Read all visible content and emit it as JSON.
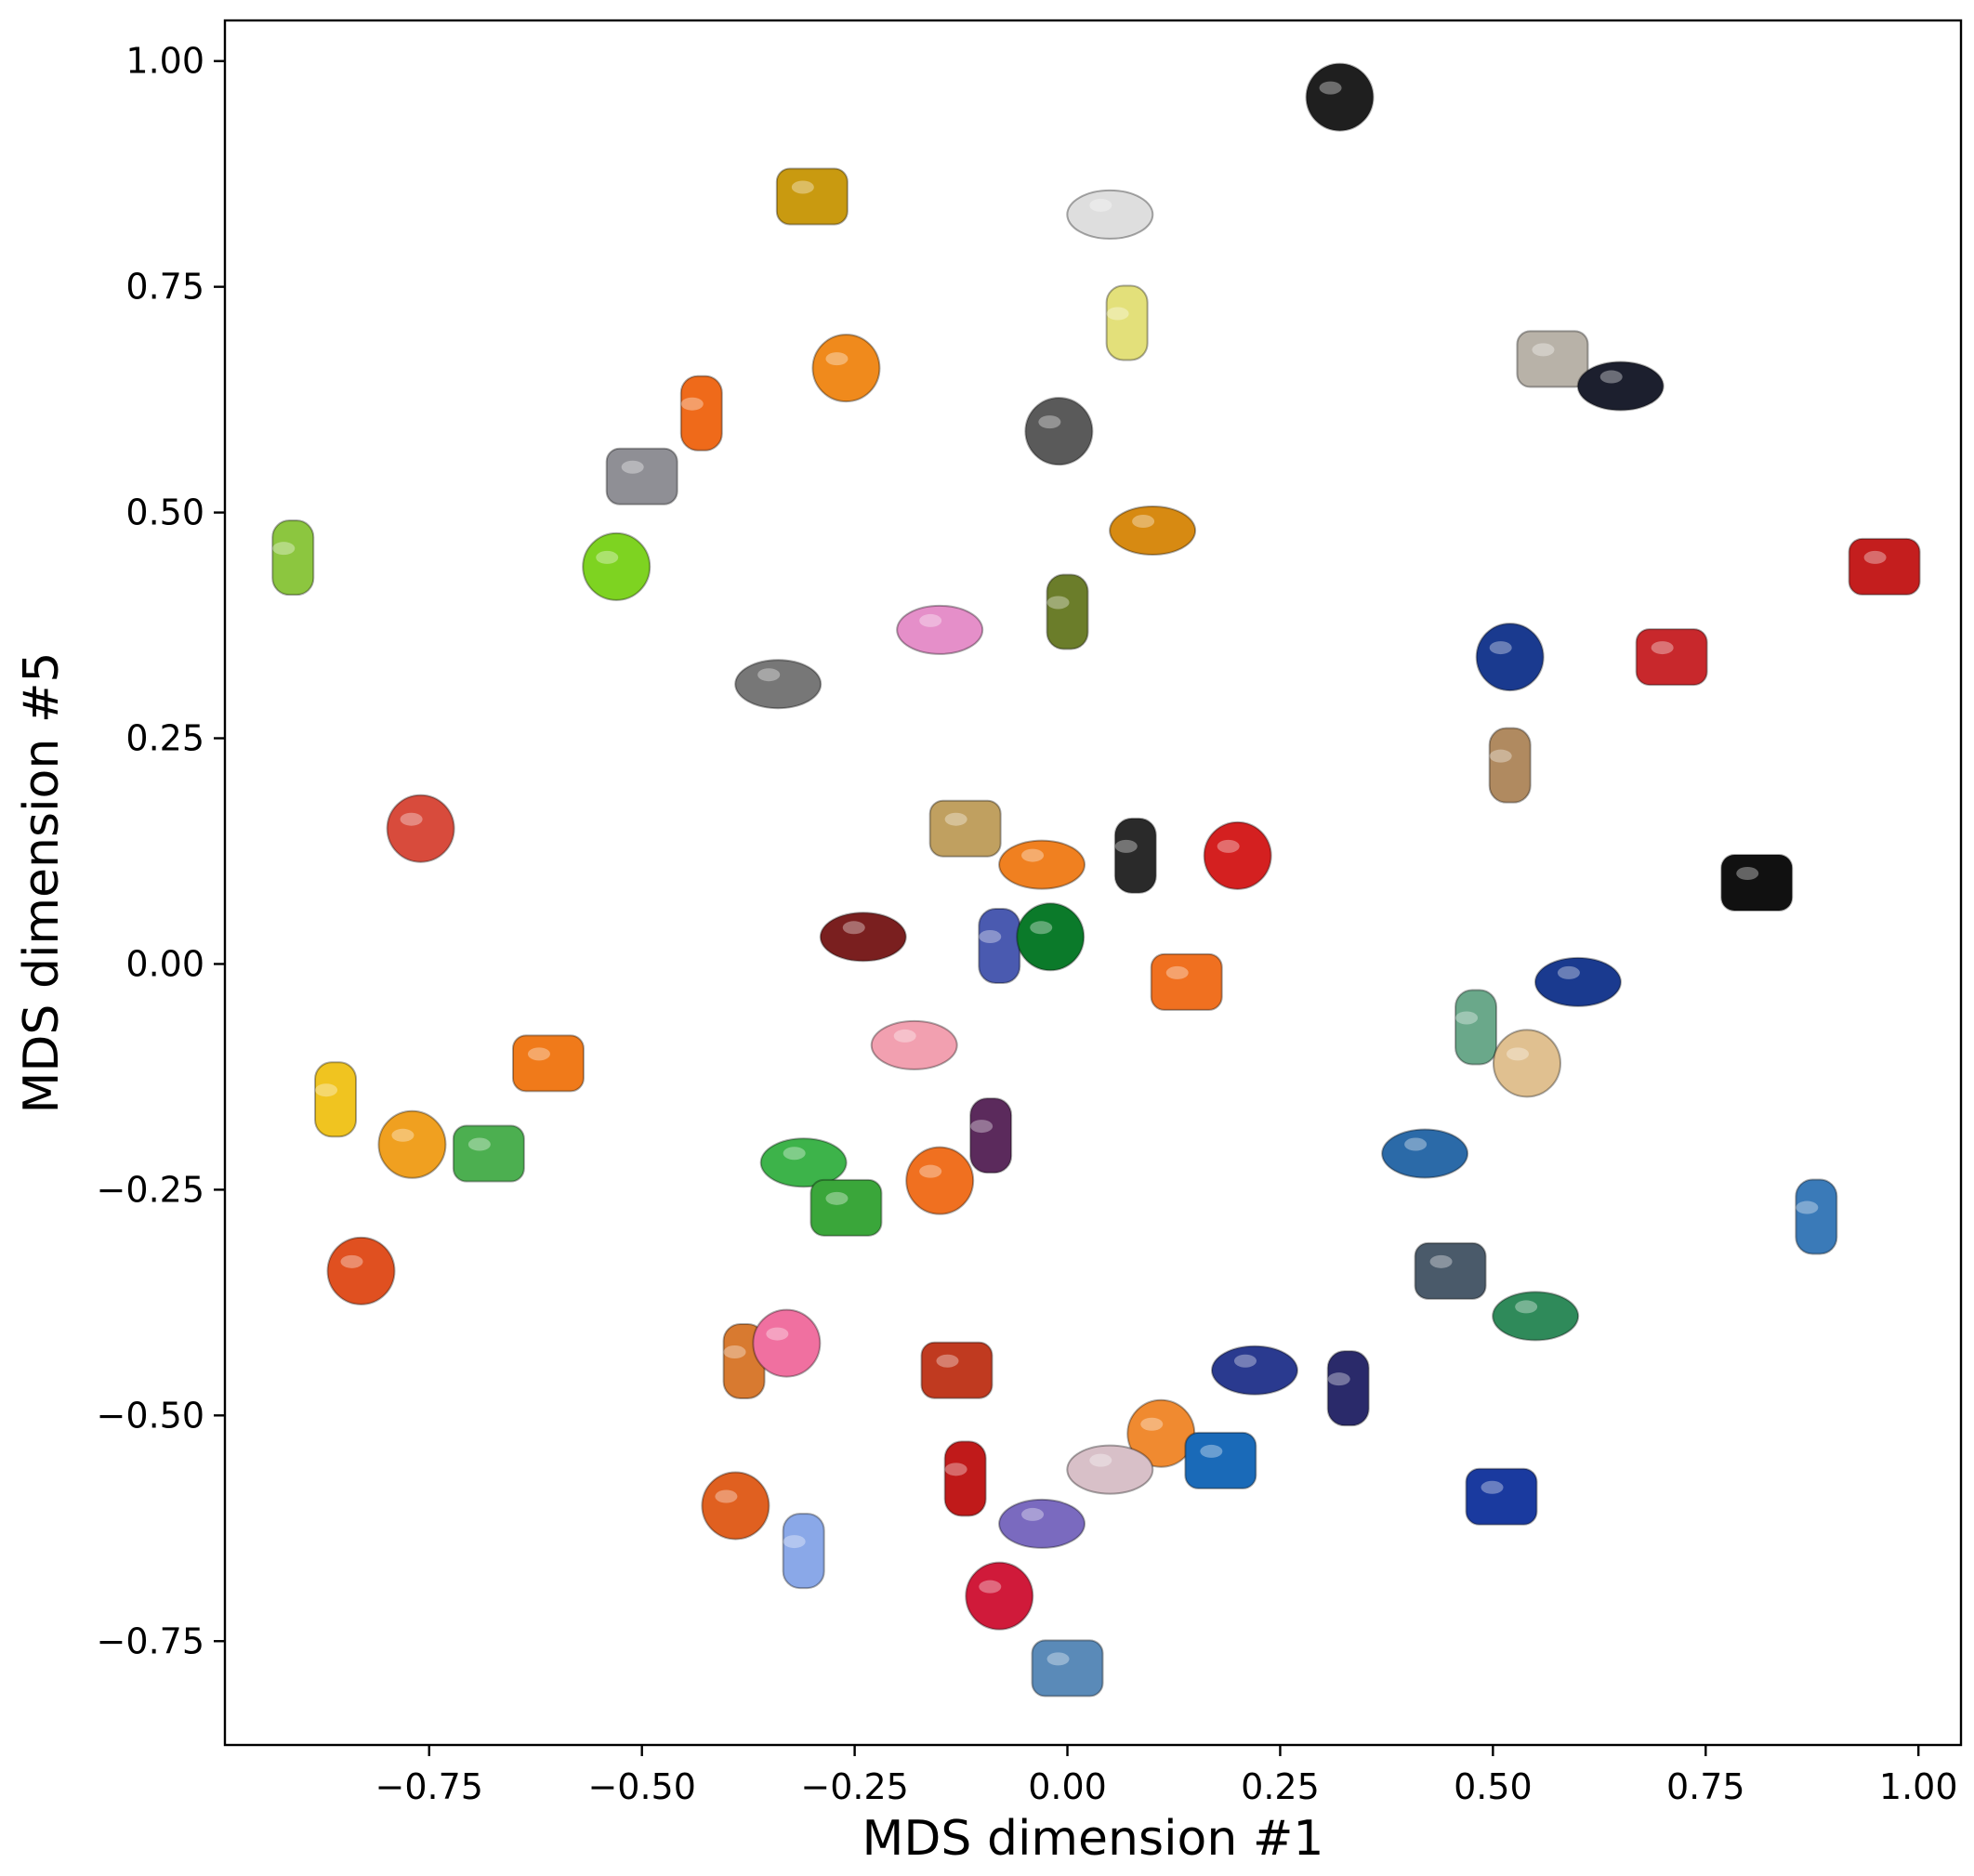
{
  "chart_data": {
    "type": "scatter",
    "title": "",
    "xlabel": "MDS dimension #1",
    "ylabel": "MDS dimension #5",
    "xlim": [
      -0.99,
      1.05
    ],
    "ylim": [
      -0.865,
      1.045
    ],
    "xticks": [
      -0.75,
      -0.5,
      -0.25,
      0.0,
      0.25,
      0.5,
      0.75,
      1.0
    ],
    "yticks": [
      -0.75,
      -0.5,
      -0.25,
      0.0,
      0.25,
      0.5,
      0.75,
      1.0
    ],
    "xtick_labels": [
      "−0.75",
      "−0.50",
      "−0.25",
      "0.00",
      "0.25",
      "0.50",
      "0.75",
      "1.00"
    ],
    "ytick_labels": [
      "−0.75",
      "−0.50",
      "−0.25",
      "0.00",
      "0.25",
      "0.50",
      "0.75",
      "1.00"
    ],
    "grid": false,
    "markers": "object images",
    "points": [
      {
        "x": 0.32,
        "y": 0.96,
        "color": "#1f1f1f",
        "icon": "round-black-object"
      },
      {
        "x": -0.3,
        "y": 0.85,
        "color": "#c99a10",
        "icon": "yellow-pot"
      },
      {
        "x": 0.05,
        "y": 0.83,
        "color": "#dedede",
        "icon": "white-ball"
      },
      {
        "x": 0.07,
        "y": 0.71,
        "color": "#e3e07a",
        "icon": "yellow-cylinder"
      },
      {
        "x": -0.26,
        "y": 0.66,
        "color": "#f08a1c",
        "icon": "orange-egg"
      },
      {
        "x": 0.57,
        "y": 0.67,
        "color": "#b8b2a8",
        "icon": "grey-curved-piece"
      },
      {
        "x": 0.65,
        "y": 0.64,
        "color": "#1c1f2e",
        "icon": "black-knob"
      },
      {
        "x": -0.43,
        "y": 0.61,
        "color": "#ef6a1a",
        "icon": "orange-crate"
      },
      {
        "x": -0.01,
        "y": 0.59,
        "color": "#5a5a5a",
        "icon": "grey-ball"
      },
      {
        "x": -0.5,
        "y": 0.54,
        "color": "#8f8f95",
        "icon": "grey-spinner"
      },
      {
        "x": 0.1,
        "y": 0.48,
        "color": "#d78a12",
        "icon": "orange-blob"
      },
      {
        "x": -0.91,
        "y": 0.45,
        "color": "#8cc63f",
        "icon": "green-clam"
      },
      {
        "x": -0.53,
        "y": 0.44,
        "color": "#7ed321",
        "icon": "green-cross"
      },
      {
        "x": 0.96,
        "y": 0.44,
        "color": "#c41e1e",
        "icon": "red-fan"
      },
      {
        "x": -0.15,
        "y": 0.37,
        "color": "#e58fc9",
        "icon": "pink-ring"
      },
      {
        "x": 0.0,
        "y": 0.39,
        "color": "#6b7d2a",
        "icon": "green-stool"
      },
      {
        "x": 0.52,
        "y": 0.34,
        "color": "#1a3a8f",
        "icon": "blue-capsule"
      },
      {
        "x": 0.71,
        "y": 0.34,
        "color": "#c8282c",
        "icon": "red-twisted-stand"
      },
      {
        "x": -0.34,
        "y": 0.31,
        "color": "#777777",
        "icon": "wire-ball"
      },
      {
        "x": 0.52,
        "y": 0.22,
        "color": "#b08a60",
        "icon": "brown-stick"
      },
      {
        "x": -0.76,
        "y": 0.15,
        "color": "#d84b3c",
        "icon": "striped-book"
      },
      {
        "x": -0.12,
        "y": 0.15,
        "color": "#c0a060",
        "icon": "clip-toy"
      },
      {
        "x": -0.03,
        "y": 0.11,
        "color": "#f08020",
        "icon": "orange-claw"
      },
      {
        "x": 0.08,
        "y": 0.12,
        "color": "#2a2a2a",
        "icon": "black-pump"
      },
      {
        "x": 0.2,
        "y": 0.12,
        "color": "#d42020",
        "icon": "red-knot"
      },
      {
        "x": 0.81,
        "y": 0.09,
        "color": "#111111",
        "icon": "black-battery"
      },
      {
        "x": -0.24,
        "y": 0.03,
        "color": "#7a1f1f",
        "icon": "dark-trident"
      },
      {
        "x": -0.08,
        "y": 0.02,
        "color": "#4a5ab0",
        "icon": "blue-bell"
      },
      {
        "x": -0.02,
        "y": 0.03,
        "color": "#0b7a2a",
        "icon": "green-bell"
      },
      {
        "x": 0.14,
        "y": -0.02,
        "color": "#f07020",
        "icon": "orange-chain"
      },
      {
        "x": 0.6,
        "y": -0.02,
        "color": "#1a3a8f",
        "icon": "blue-whistle"
      },
      {
        "x": 0.48,
        "y": -0.07,
        "color": "#6aa88a",
        "icon": "tube-bundle"
      },
      {
        "x": 0.54,
        "y": -0.11,
        "color": "#e0c090",
        "icon": "wooden-bar"
      },
      {
        "x": -0.61,
        "y": -0.11,
        "color": "#f07a1a",
        "icon": "orange-rocket"
      },
      {
        "x": -0.18,
        "y": -0.09,
        "color": "#f2a0b0",
        "icon": "pink-feathers"
      },
      {
        "x": -0.86,
        "y": -0.15,
        "color": "#f0c420",
        "icon": "yellow-wheel"
      },
      {
        "x": -0.77,
        "y": -0.2,
        "color": "#f0a020",
        "icon": "orange-sphere"
      },
      {
        "x": -0.68,
        "y": -0.21,
        "color": "#4caf50",
        "icon": "green-squirt"
      },
      {
        "x": -0.31,
        "y": -0.22,
        "color": "#3db34a",
        "icon": "green-slingshot"
      },
      {
        "x": -0.09,
        "y": -0.19,
        "color": "#5b2a5c",
        "icon": "purple-hook"
      },
      {
        "x": -0.15,
        "y": -0.24,
        "color": "#f07020",
        "icon": "orange-ring"
      },
      {
        "x": -0.26,
        "y": -0.27,
        "color": "#3aa63a",
        "icon": "green-donut"
      },
      {
        "x": 0.42,
        "y": -0.21,
        "color": "#2b6aa8",
        "icon": "blue-penguin"
      },
      {
        "x": 0.88,
        "y": -0.28,
        "color": "#3a7ab8",
        "icon": "blue-sandal"
      },
      {
        "x": -0.83,
        "y": -0.34,
        "color": "#e05020",
        "icon": "block-stack"
      },
      {
        "x": 0.45,
        "y": -0.34,
        "color": "#4a5a6a",
        "icon": "grey-pipe"
      },
      {
        "x": 0.55,
        "y": -0.39,
        "color": "#2f8a5a",
        "icon": "green-bone"
      },
      {
        "x": -0.38,
        "y": -0.44,
        "color": "#d87a30",
        "icon": "wooden-mallet"
      },
      {
        "x": -0.33,
        "y": -0.42,
        "color": "#f070a0",
        "icon": "pink-string"
      },
      {
        "x": -0.13,
        "y": -0.45,
        "color": "#c03a20",
        "icon": "red-mop"
      },
      {
        "x": 0.22,
        "y": -0.45,
        "color": "#2a3a8f",
        "icon": "jack-toy"
      },
      {
        "x": 0.33,
        "y": -0.47,
        "color": "#2a2a6a",
        "icon": "dumbbell"
      },
      {
        "x": 0.11,
        "y": -0.52,
        "color": "#f08a30",
        "icon": "orange-spiky"
      },
      {
        "x": 0.18,
        "y": -0.55,
        "color": "#1a6ab8",
        "icon": "blue-octopus"
      },
      {
        "x": 0.05,
        "y": -0.56,
        "color": "#d8c0c8",
        "icon": "pink-links"
      },
      {
        "x": -0.12,
        "y": -0.57,
        "color": "#c01a1a",
        "icon": "red-spiky-ball"
      },
      {
        "x": -0.39,
        "y": -0.6,
        "color": "#e06020",
        "icon": "orange-pear"
      },
      {
        "x": 0.51,
        "y": -0.59,
        "color": "#1a3a9f",
        "icon": "blue-brush"
      },
      {
        "x": -0.03,
        "y": -0.62,
        "color": "#7a6abf",
        "icon": "purple-wand"
      },
      {
        "x": -0.31,
        "y": -0.65,
        "color": "#8aa8e8",
        "icon": "bead-cluster"
      },
      {
        "x": -0.08,
        "y": -0.7,
        "color": "#d01a3a",
        "icon": "red-spiky"
      },
      {
        "x": 0.0,
        "y": -0.78,
        "color": "#5a8ab8",
        "icon": "rope-toy"
      }
    ]
  }
}
